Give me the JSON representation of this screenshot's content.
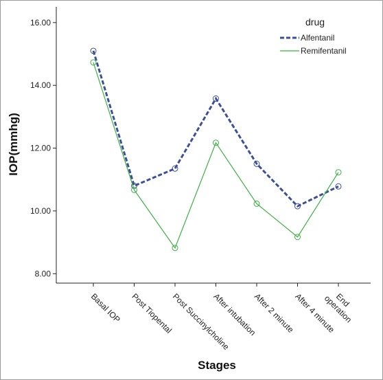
{
  "chart_data": {
    "type": "line",
    "title": "",
    "xlabel": "Stages",
    "ylabel": "IOP(mmhg)",
    "categories": [
      "Basal IOP",
      "Post Tiopental",
      "Post Succinylcholine",
      "After intubation",
      "After 2 minute",
      "After 4 minute",
      "End operation"
    ],
    "category_lines": [
      [
        "Basal IOP"
      ],
      [
        "Post Tiopental"
      ],
      [
        "Post Succinylcholine"
      ],
      [
        "After intubation"
      ],
      [
        "After 2 minute"
      ],
      [
        "After 4 minute"
      ],
      [
        "End",
        "operation"
      ]
    ],
    "ylim": [
      7.7,
      16.5
    ],
    "yticks": [
      8.0,
      10.0,
      12.0,
      14.0,
      16.0
    ],
    "ytick_labels": [
      "8.00",
      "10.00",
      "12.00",
      "14.00",
      "16.00"
    ],
    "grid": false,
    "legend": {
      "title": "drug",
      "placement": "top-right"
    },
    "series": [
      {
        "name": "Alfentanil",
        "values": [
          15.1,
          10.8,
          11.35,
          13.58,
          11.5,
          10.15,
          10.78
        ],
        "color": "#3b4f9a",
        "style": "dashed"
      },
      {
        "name": "Remifentanil",
        "values": [
          14.73,
          10.67,
          8.82,
          12.17,
          10.23,
          9.17,
          11.23
        ],
        "color": "#3cb043",
        "style": "solid"
      }
    ]
  }
}
